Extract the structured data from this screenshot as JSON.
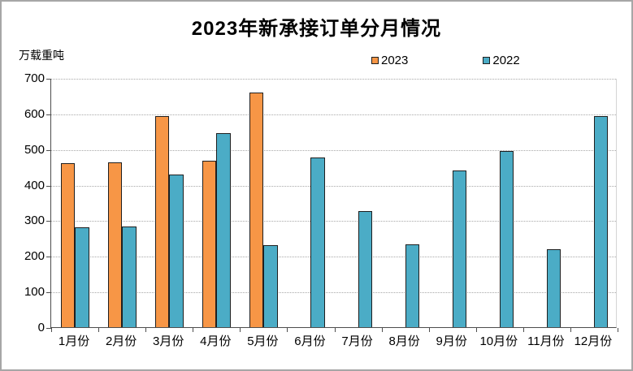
{
  "window": {
    "background": "#ffffff",
    "frame_border_color": "#a6a6a6"
  },
  "chart_data": {
    "type": "bar",
    "title": "2023年新承接订单分月情况",
    "ylabel": "万载重吨",
    "xlabel": "",
    "categories": [
      "1月份",
      "2月份",
      "3月份",
      "4月份",
      "5月份",
      "6月份",
      "7月份",
      "8月份",
      "9月份",
      "10月份",
      "11月份",
      "12月份"
    ],
    "series": [
      {
        "name": "2023",
        "color": "#F79646",
        "values": [
          461,
          463,
          593,
          467,
          658,
          null,
          null,
          null,
          null,
          null,
          null,
          null
        ]
      },
      {
        "name": "2022",
        "color": "#4BACC6",
        "values": [
          281,
          283,
          429,
          546,
          230,
          477,
          326,
          232,
          441,
          494,
          220,
          592
        ]
      }
    ],
    "ylim": [
      0,
      700
    ],
    "yticks": [
      0,
      100,
      200,
      300,
      400,
      500,
      600,
      700
    ],
    "grid": "horizontal-dotted",
    "legend_position": "top-center",
    "bar_outline_color": "#1f1f1f"
  }
}
